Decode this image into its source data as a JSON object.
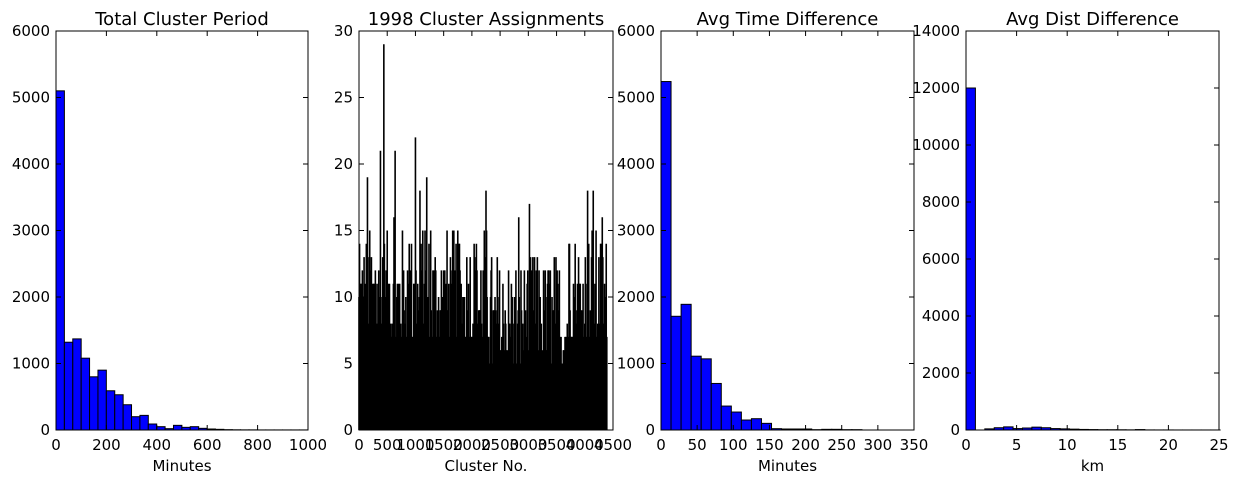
{
  "chart_data": [
    {
      "type": "bar",
      "title": "Total Cluster Period",
      "xlabel": "Minutes",
      "ylabel": "",
      "xlim": [
        0,
        1000
      ],
      "ylim": [
        0,
        6000
      ],
      "xticks": [
        "0",
        "200",
        "400",
        "600",
        "800",
        "1000"
      ],
      "yticks": [
        "0",
        "1000",
        "2000",
        "3000",
        "4000",
        "5000",
        "6000"
      ],
      "bin_width": 33.3,
      "bin_start": 0,
      "values": [
        5100,
        1320,
        1370,
        1080,
        800,
        900,
        590,
        530,
        380,
        200,
        220,
        90,
        50,
        20,
        70,
        40,
        50,
        25,
        15,
        10,
        5,
        3,
        2,
        2,
        1,
        1,
        1,
        1,
        1,
        1
      ],
      "color": "#0000ff"
    },
    {
      "type": "bar",
      "title": "1998 Cluster Assignments",
      "xlabel": "Cluster No.",
      "ylabel": "",
      "xlim": [
        0,
        4500
      ],
      "ylim": [
        0,
        30
      ],
      "xticks": [
        "0",
        "500",
        "1000",
        "1500",
        "2000",
        "2500",
        "3000",
        "3500",
        "4000",
        "4500"
      ],
      "yticks": [
        "0",
        "5",
        "10",
        "15",
        "20",
        "25",
        "30"
      ],
      "n_clusters": 4400,
      "notable_peaks": [
        [
          440,
          29
        ],
        [
          150,
          19
        ],
        [
          640,
          21
        ],
        [
          380,
          21
        ],
        [
          1000,
          22
        ],
        [
          1200,
          19
        ],
        [
          4050,
          18
        ],
        [
          4150,
          18
        ]
      ],
      "color": "#000000"
    },
    {
      "type": "bar",
      "title": "Avg Time Difference",
      "xlabel": "Minutes",
      "ylabel": "",
      "xlim": [
        0,
        350
      ],
      "ylim": [
        0,
        6000
      ],
      "xticks": [
        "0",
        "50",
        "100",
        "150",
        "200",
        "250",
        "300",
        "350"
      ],
      "yticks": [
        "0",
        "1000",
        "2000",
        "3000",
        "4000",
        "5000",
        "6000"
      ],
      "bin_width": 13.9,
      "bin_start": 0,
      "values": [
        5240,
        1710,
        1890,
        1110,
        1070,
        700,
        360,
        270,
        150,
        170,
        100,
        20,
        15,
        15,
        15,
        5,
        10,
        10,
        5,
        5
      ],
      "color": "#0000ff"
    },
    {
      "type": "bar",
      "title": "Avg Dist Difference",
      "xlabel": "km",
      "ylabel": "",
      "xlim": [
        0,
        25
      ],
      "ylim": [
        0,
        14000
      ],
      "xticks": [
        "0",
        "5",
        "10",
        "15",
        "20",
        "25"
      ],
      "yticks": [
        "0",
        "2000",
        "4000",
        "6000",
        "8000",
        "10000",
        "12000",
        "14000"
      ],
      "bin_width": 0.93,
      "bin_start": 0,
      "values": [
        12000,
        0,
        40,
        80,
        110,
        50,
        70,
        100,
        80,
        50,
        40,
        30,
        20,
        15,
        10,
        10,
        8,
        5,
        15,
        3,
        2,
        2,
        1,
        1,
        1,
        1,
        1
      ],
      "color": "#0000ff"
    }
  ]
}
